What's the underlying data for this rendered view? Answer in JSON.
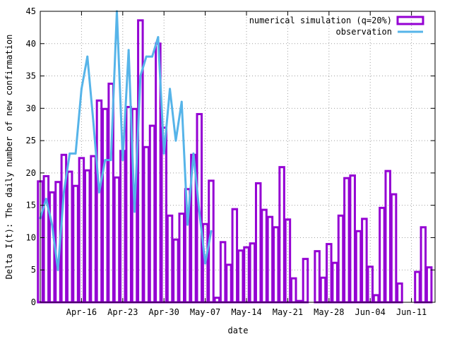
{
  "chart_data": {
    "type": "bar",
    "title": "",
    "xlabel": "date",
    "ylabel": "Delta I(t): The daily number of new confirmation",
    "x_tick_labels": [
      "Apr-16",
      "Apr-23",
      "Apr-30",
      "May-07",
      "May-14",
      "May-21",
      "May-28",
      "Jun-04",
      "Jun-11"
    ],
    "y_ticks": [
      0,
      5,
      10,
      15,
      20,
      25,
      30,
      35,
      40,
      45
    ],
    "ylim": [
      0,
      45
    ],
    "grid": true,
    "legend_position": "top-right",
    "colors": {
      "bars": "#9400d3",
      "line": "#56b4e9"
    },
    "series": [
      {
        "name": "numerical simulation (q=20%)",
        "type": "bar",
        "start": "Apr-09",
        "values": [
          18.7,
          19.5,
          17.0,
          18.6,
          22.8,
          20.2,
          18.0,
          22.3,
          20.4,
          22.6,
          31.2,
          29.9,
          33.8,
          19.3,
          23.4,
          30.2,
          29.9,
          43.6,
          24.0,
          27.3,
          40.0,
          27.0,
          13.4,
          9.7,
          13.7,
          17.5,
          22.8,
          29.1,
          12.1,
          18.8,
          0.7,
          9.3,
          5.8,
          14.4,
          8.0,
          8.5,
          9.1,
          18.4,
          14.3,
          13.2,
          11.6,
          20.9,
          12.8,
          3.7,
          0.2,
          6.7,
          0.0,
          7.9,
          3.8,
          9.0,
          6.1,
          13.4,
          19.2,
          19.6,
          11.0,
          12.9,
          5.5,
          1.1,
          14.6,
          20.3,
          16.7,
          2.9,
          0.0,
          0.0,
          4.7,
          11.6,
          5.4
        ]
      },
      {
        "name": "observation",
        "type": "line",
        "start": "Apr-09",
        "values": [
          13,
          16,
          12,
          5,
          17,
          23,
          23,
          33,
          38,
          28,
          17,
          22,
          22,
          45,
          22,
          39,
          14,
          35,
          38,
          38,
          41,
          23,
          33,
          25,
          31,
          12,
          23,
          14,
          6,
          11
        ]
      }
    ]
  }
}
